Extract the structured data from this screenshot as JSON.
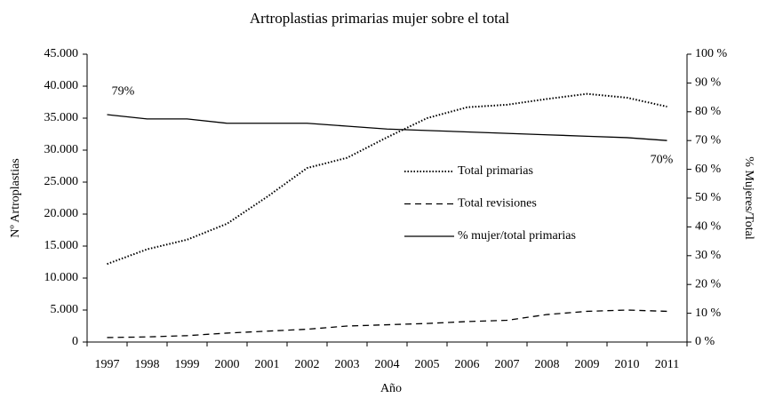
{
  "chart_data": {
    "type": "line",
    "title": "Artroplastias primarias mujer sobre el total",
    "x_label": "Año",
    "y_label": "Nº Artroplastias",
    "y2_label": "% Mujeres/Total",
    "categories": [
      "1997",
      "1998",
      "1999",
      "2000",
      "2001",
      "2002",
      "2003",
      "2004",
      "2005",
      "2006",
      "2007",
      "2008",
      "2009",
      "2010",
      "2011"
    ],
    "series": [
      {
        "name": "Total primarias",
        "color": "#000000",
        "dash": "dotted",
        "values": [
          12200,
          14500,
          16000,
          18500,
          22700,
          27200,
          28800,
          32000,
          35000,
          36700,
          37100,
          38000,
          38800,
          38200,
          36800
        ]
      },
      {
        "name": "Total revisiones",
        "color": "#000000",
        "dash": "dashed",
        "values": [
          700,
          800,
          1000,
          1400,
          1700,
          2000,
          2500,
          2700,
          2900,
          3200,
          3400,
          4300,
          4800,
          5000,
          4800
        ]
      },
      {
        "name": "% mujer/total primarias",
        "color": "#000000",
        "dash": "solid",
        "axis": "y2",
        "values": [
          79,
          77.5,
          77.5,
          76,
          76,
          76,
          75,
          74,
          73.5,
          73,
          72.5,
          72,
          71.5,
          71,
          70
        ],
        "value_labels": [
          "79%",
          null,
          null,
          null,
          null,
          null,
          null,
          null,
          null,
          null,
          null,
          null,
          null,
          null,
          "70%"
        ]
      }
    ],
    "ylim": [
      0,
      45000
    ],
    "yticks": [
      0,
      {
        "value": 5000,
        "label": "5.000"
      },
      {
        "value": 10000,
        "label": "10.000"
      },
      {
        "value": 15000,
        "label": "15.000"
      },
      {
        "value": 20000,
        "label": "20.000"
      },
      {
        "value": 25000,
        "label": "25.000"
      },
      {
        "value": 30000,
        "label": "30.000"
      },
      {
        "value": 35000,
        "label": "35.000"
      },
      {
        "value": 40000,
        "label": "40.000"
      },
      {
        "value": 45000,
        "label": "45.000"
      }
    ],
    "y2lim": [
      0,
      100
    ],
    "y2ticks": [
      {
        "value": 0,
        "label": "0 %"
      },
      {
        "value": 10,
        "label": "10 %"
      },
      {
        "value": 20,
        "label": "20 %"
      },
      {
        "value": 30,
        "label": "30 %"
      },
      {
        "value": 40,
        "label": "40 %"
      },
      {
        "value": 50,
        "label": "50 %"
      },
      {
        "value": 60,
        "label": "60 %"
      },
      {
        "value": 70,
        "label": "70 %"
      },
      {
        "value": 80,
        "label": "80 %"
      },
      {
        "value": 90,
        "label": "90 %"
      },
      {
        "value": 100,
        "label": "100 %"
      }
    ],
    "grid": false,
    "legend": "center-right"
  }
}
